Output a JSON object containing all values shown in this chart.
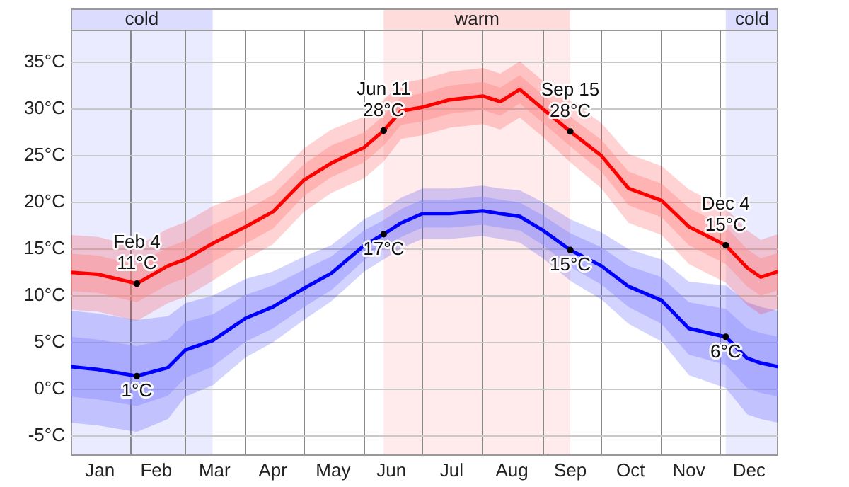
{
  "chart_data": {
    "type": "line",
    "x": [
      "--01-01",
      "--01-15",
      "--02-04",
      "--02-20",
      "--03-01",
      "--03-15",
      "--04-01",
      "--04-15",
      "--05-01",
      "--05-15",
      "--06-01",
      "--06-11",
      "--06-20",
      "--07-01",
      "--07-15",
      "--08-01",
      "--08-10",
      "--08-20",
      "--09-01",
      "--09-15",
      "--10-01",
      "--10-15",
      "--11-01",
      "--11-15",
      "--12-04",
      "--12-15",
      "--12-22",
      "--12-31"
    ],
    "series": [
      {
        "color": "#0000ff",
        "values": [
          2.4,
          2.1,
          1.4,
          2.3,
          4.2,
          5.2,
          7.6,
          8.8,
          10.8,
          12.4,
          15.4,
          16.6,
          17.8,
          18.8,
          18.8,
          19.1,
          18.8,
          18.5,
          17,
          14.9,
          13.2,
          11,
          9.5,
          6.5,
          5.6,
          3.3,
          2.8,
          2.4
        ],
        "lower": [
          -3.6,
          -3.9,
          -4.6,
          -3.2,
          -0.8,
          0.4,
          3.4,
          5,
          7.4,
          9.4,
          12.6,
          13.9,
          15.1,
          16.1,
          16.1,
          16.4,
          16.1,
          15.7,
          14,
          11.6,
          9.6,
          7,
          5.1,
          1.5,
          0.1,
          -2.7,
          -3.2,
          -3.6
        ],
        "upper": [
          8.4,
          8.1,
          7.4,
          7.8,
          9.2,
          10,
          11.8,
          12.6,
          14.2,
          15.4,
          18.2,
          19.3,
          20.5,
          21.5,
          21.5,
          21.8,
          21.5,
          21.3,
          20,
          18.2,
          16.8,
          15,
          13.9,
          11.5,
          11.1,
          9.3,
          8.8,
          8.4
        ]
      },
      {
        "color": "#8c8cff",
        "values": [
          null,
          null,
          null,
          null,
          null,
          null,
          null,
          null,
          null,
          null,
          null,
          null,
          null,
          null,
          null,
          null,
          null,
          null,
          null,
          null,
          null,
          null,
          null,
          null,
          null,
          null,
          null,
          null
        ],
        "lower": [
          -0.8,
          -1.1,
          -1.8,
          -0.7,
          1.2,
          2.4,
          5.1,
          6.5,
          8.8,
          10.6,
          13.8,
          15.1,
          16.3,
          17.3,
          17.3,
          17.6,
          17.3,
          17,
          15.4,
          13.1,
          11.2,
          8.8,
          7,
          3.7,
          2.6,
          0.1,
          -0.4,
          -0.8
        ],
        "upper": [
          5.6,
          5.3,
          4.6,
          5.3,
          7.2,
          8,
          10.1,
          11.1,
          12.8,
          14.2,
          17,
          18.1,
          19.3,
          20.3,
          20.3,
          20.6,
          20.3,
          20,
          18.6,
          16.7,
          15.2,
          13.2,
          12,
          9.3,
          8.6,
          6.5,
          6,
          5.6
        ]
      },
      {
        "color": "#ff0000",
        "values": [
          12.5,
          12.3,
          11.3,
          13.2,
          13.9,
          15.6,
          17.4,
          19,
          22.4,
          24.2,
          25.9,
          27.7,
          29.8,
          30.2,
          31,
          31.4,
          30.8,
          32.1,
          30,
          27.6,
          25,
          21.5,
          20.2,
          17.4,
          15.4,
          13,
          12,
          12.6
        ],
        "lower": [
          8.5,
          8.3,
          7.3,
          9.2,
          9.9,
          11.6,
          13.9,
          15.5,
          19,
          21,
          22.6,
          24.4,
          26.8,
          27.2,
          28,
          28.4,
          27.8,
          29.1,
          27,
          24.3,
          21.5,
          17.8,
          16.5,
          13.4,
          11.4,
          9,
          8,
          8.6
        ],
        "upper": [
          16.5,
          16.3,
          15.3,
          17.2,
          17.9,
          19.6,
          20.9,
          22.5,
          25.8,
          27.8,
          29.2,
          31,
          32.8,
          33.2,
          34,
          34.4,
          33.8,
          35.1,
          33,
          30.9,
          28.5,
          25.2,
          23.9,
          21.4,
          19.4,
          17,
          16,
          16.6
        ]
      },
      {
        "color": "#ff8c8c",
        "values": [
          null,
          null,
          null,
          null,
          null,
          null,
          null,
          null,
          null,
          null,
          null,
          null,
          null,
          null,
          null,
          null,
          null,
          null,
          null,
          null,
          null,
          null,
          null,
          null,
          null,
          null,
          null,
          null
        ],
        "lower": [
          10.5,
          10.3,
          9.3,
          11.2,
          11.9,
          13.6,
          15.6,
          17.2,
          20.7,
          22.7,
          24.3,
          26.1,
          28.3,
          28.7,
          29.5,
          29.9,
          29.3,
          30.6,
          28.5,
          26,
          23.3,
          19.7,
          18.4,
          15.4,
          13.4,
          11,
          10,
          10.6
        ],
        "upper": [
          14.5,
          14.3,
          13.3,
          15.2,
          15.9,
          17.6,
          19.2,
          20.8,
          24.1,
          26.1,
          27.5,
          29.3,
          31.3,
          31.7,
          32.5,
          32.9,
          32.3,
          33.6,
          31.5,
          29.2,
          26.7,
          23.3,
          22,
          19.4,
          17.4,
          15,
          14,
          14.6
        ]
      }
    ],
    "xlim": [
      "--01-01",
      "--12-31"
    ],
    "xticks": [
      {
        "value": "--01-16",
        "label": "Jan"
      },
      {
        "value": "--02-01",
        "label": null
      },
      {
        "value": "--02-14",
        "label": "Feb"
      },
      {
        "value": "--03-01",
        "label": null
      },
      {
        "value": "--03-16",
        "label": "Mar"
      },
      {
        "value": "--04-01",
        "label": null
      },
      {
        "value": "--04-15",
        "label": "Apr"
      },
      {
        "value": "--05-01",
        "label": null
      },
      {
        "value": "--05-16",
        "label": "May"
      },
      {
        "value": "--06-01",
        "label": null
      },
      {
        "value": "--06-15",
        "label": "Jun"
      },
      {
        "value": "--07-01",
        "label": null
      },
      {
        "value": "--07-16",
        "label": "Jul"
      },
      {
        "value": "--08-01",
        "label": null
      },
      {
        "value": "--08-16",
        "label": "Aug"
      },
      {
        "value": "--09-01",
        "label": null
      },
      {
        "value": "--09-15",
        "label": "Sep"
      },
      {
        "value": "--10-01",
        "label": null
      },
      {
        "value": "--10-16",
        "label": "Oct"
      },
      {
        "value": "--11-01",
        "label": null
      },
      {
        "value": "--11-15",
        "label": "Nov"
      },
      {
        "value": "--12-01",
        "label": null
      },
      {
        "value": "--12-16",
        "label": "Dec"
      }
    ],
    "ylim": [
      -7,
      38.5
    ],
    "yticks": [
      {
        "value": -5,
        "label": "-5°C"
      },
      {
        "value": 0,
        "label": "0°C"
      },
      {
        "value": 5,
        "label": "5°C"
      },
      {
        "value": 10,
        "label": "10°C"
      },
      {
        "value": 15,
        "label": "15°C"
      },
      {
        "value": 20,
        "label": "20°C"
      },
      {
        "value": 25,
        "label": "25°C"
      },
      {
        "value": 30,
        "label": "30°C"
      },
      {
        "value": 35,
        "label": "35°C"
      }
    ],
    "grid": true,
    "marker": "none",
    "bands": [
      {
        "axis": "x",
        "from": "--01-01",
        "to": "--03-15",
        "label": "cold",
        "color": "#ebebff"
      },
      {
        "axis": "x",
        "from": "--06-11",
        "to": "--09-15",
        "label": "warm",
        "color": "#ffebeb"
      },
      {
        "axis": "x",
        "from": "--12-04",
        "to": "--12-31",
        "label": "cold",
        "color": "#ebebff"
      }
    ],
    "annotations": [
      {
        "text": "Feb 4\n11°C",
        "x": "--02-04",
        "y": 11.3
      },
      {
        "text": "1°C",
        "x": "--02-04",
        "y": 1.4
      },
      {
        "text": "Jun 11\n28°C",
        "x": "--06-11",
        "y": 27.7
      },
      {
        "text": "17°C",
        "x": "--06-11",
        "y": 16.6
      },
      {
        "text": "Sep 15\n28°C",
        "x": "--09-15",
        "y": 27.6
      },
      {
        "text": "15°C",
        "x": "--09-15",
        "y": 14.9
      },
      {
        "text": "Dec 4\n15°C",
        "x": "--12-04",
        "y": 15.4
      },
      {
        "text": "6°C",
        "x": "--12-04",
        "y": 5.6
      }
    ]
  }
}
